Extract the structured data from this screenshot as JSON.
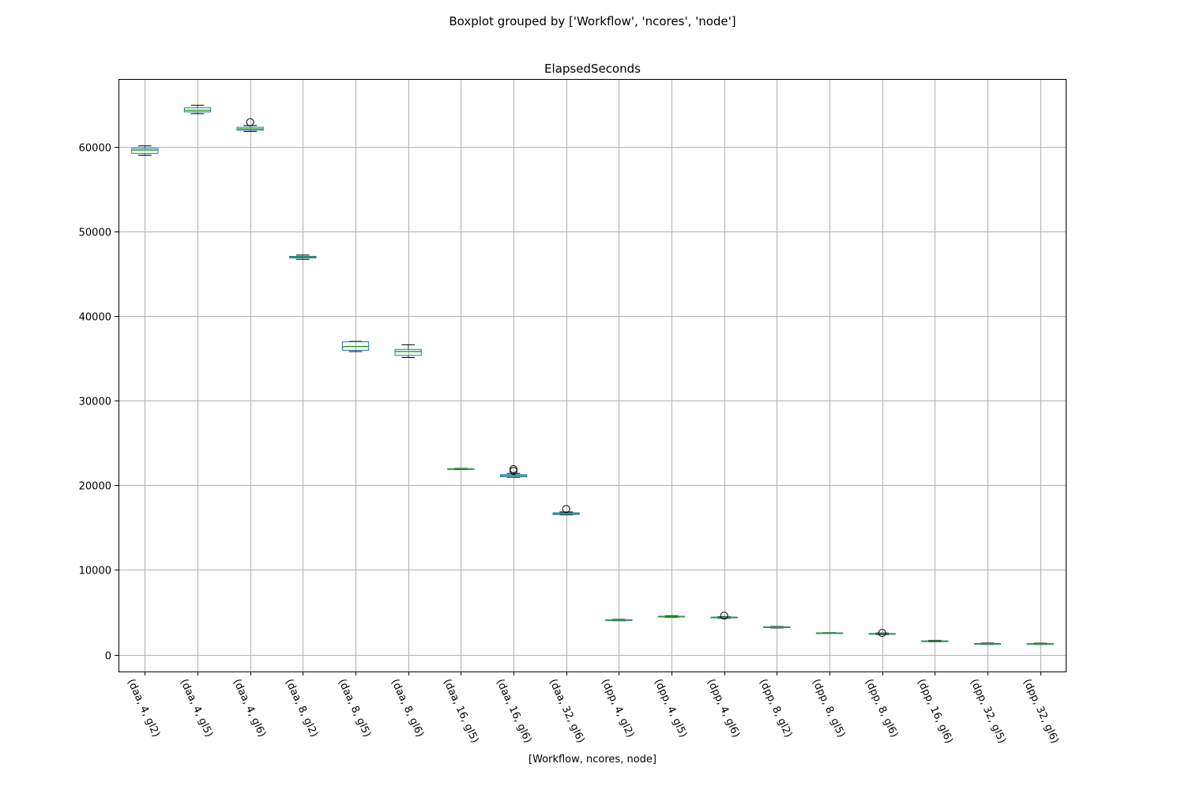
{
  "chart_data": {
    "type": "boxplot",
    "suptitle": "Boxplot grouped by ['Workflow', 'ncores', 'node']",
    "title": "ElapsedSeconds",
    "xlabel": "[Workflow, ncores, node]",
    "ylabel": "",
    "ylim": [
      -2000,
      68000
    ],
    "yticks": [
      0,
      10000,
      20000,
      30000,
      40000,
      50000,
      60000
    ],
    "grid": true,
    "categories": [
      "(daa, 4, gl2)",
      "(daa, 4, gl5)",
      "(daa, 4, gl6)",
      "(daa, 8, gl2)",
      "(daa, 8, gl5)",
      "(daa, 8, gl6)",
      "(daa, 16, gl5)",
      "(daa, 16, gl6)",
      "(daa, 32, gl6)",
      "(dpp, 4, gl2)",
      "(dpp, 4, gl5)",
      "(dpp, 4, gl6)",
      "(dpp, 8, gl2)",
      "(dpp, 8, gl5)",
      "(dpp, 8, gl6)",
      "(dpp, 16, gl6)",
      "(dpp, 32, gl5)",
      "(dpp, 32, gl6)"
    ],
    "boxes": [
      {
        "whislo": 59000,
        "q1": 59200,
        "med": 59600,
        "q3": 59800,
        "whishi": 60100,
        "fliers": []
      },
      {
        "whislo": 63900,
        "q1": 64100,
        "med": 64300,
        "q3": 64600,
        "whishi": 64900,
        "fliers": []
      },
      {
        "whislo": 61800,
        "q1": 61950,
        "med": 62100,
        "q3": 62300,
        "whishi": 62500,
        "fliers": [
          62900
        ]
      },
      {
        "whislo": 46700,
        "q1": 46850,
        "med": 46950,
        "q3": 47050,
        "whishi": 47200,
        "fliers": []
      },
      {
        "whislo": 35800,
        "q1": 35950,
        "med": 36400,
        "q3": 36950,
        "whishi": 37000,
        "fliers": []
      },
      {
        "whislo": 35100,
        "q1": 35350,
        "med": 35800,
        "q3": 36050,
        "whishi": 36600,
        "fliers": []
      },
      {
        "whislo": 21850,
        "q1": 21900,
        "med": 21930,
        "q3": 21960,
        "whishi": 22000,
        "fliers": []
      },
      {
        "whislo": 20950,
        "q1": 21000,
        "med": 21150,
        "q3": 21250,
        "whishi": 21400,
        "fliers": [
          21700,
          21900
        ]
      },
      {
        "whislo": 16500,
        "q1": 16550,
        "med": 16650,
        "q3": 16750,
        "whishi": 16850,
        "fliers": [
          17200
        ]
      },
      {
        "whislo": 4000,
        "q1": 4050,
        "med": 4080,
        "q3": 4120,
        "whishi": 4160,
        "fliers": []
      },
      {
        "whislo": 4400,
        "q1": 4450,
        "med": 4490,
        "q3": 4530,
        "whishi": 4580,
        "fliers": []
      },
      {
        "whislo": 4300,
        "q1": 4350,
        "med": 4390,
        "q3": 4430,
        "whishi": 4480,
        "fliers": [
          4600
        ]
      },
      {
        "whislo": 3150,
        "q1": 3200,
        "med": 3240,
        "q3": 3280,
        "whishi": 3320,
        "fliers": []
      },
      {
        "whislo": 2480,
        "q1": 2510,
        "med": 2540,
        "q3": 2570,
        "whishi": 2600,
        "fliers": []
      },
      {
        "whislo": 2350,
        "q1": 2400,
        "med": 2450,
        "q3": 2500,
        "whishi": 2550,
        "fliers": [
          2560
        ]
      },
      {
        "whislo": 1500,
        "q1": 1530,
        "med": 1580,
        "q3": 1620,
        "whishi": 1680,
        "fliers": []
      },
      {
        "whislo": 1200,
        "q1": 1240,
        "med": 1270,
        "q3": 1310,
        "whishi": 1360,
        "fliers": []
      },
      {
        "whislo": 1200,
        "q1": 1230,
        "med": 1260,
        "q3": 1300,
        "whishi": 1350,
        "fliers": []
      }
    ]
  }
}
